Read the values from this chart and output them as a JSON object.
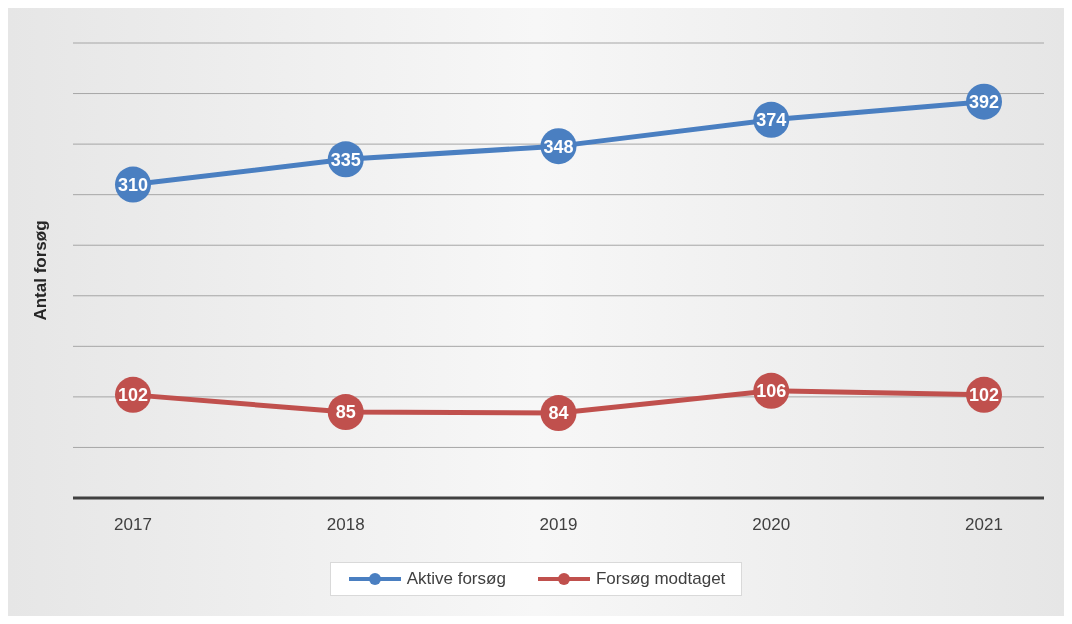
{
  "chart_data": {
    "type": "line",
    "ylabel": "Antal forsøg",
    "categories": [
      "2017",
      "2018",
      "2019",
      "2020",
      "2021"
    ],
    "series": [
      {
        "name": "Aktive forsøg",
        "color": "#4a7fc1",
        "values": [
          310,
          335,
          348,
          374,
          392
        ]
      },
      {
        "name": "Forsøg modtaget",
        "color": "#c0504d",
        "values": [
          102,
          85,
          84,
          106,
          102
        ]
      }
    ],
    "ylim": [
      0,
      450
    ],
    "yticks": [
      {
        "value": 0,
        "label": null
      },
      {
        "value": 50,
        "label": null
      },
      {
        "value": 100,
        "label": null
      },
      {
        "value": 150,
        "label": null
      },
      {
        "value": 200,
        "label": null
      },
      {
        "value": 250,
        "label": null
      },
      {
        "value": 300,
        "label": null
      },
      {
        "value": 350,
        "label": null
      },
      {
        "value": 400,
        "label": null
      },
      {
        "value": 450,
        "label": null
      }
    ],
    "tick_labels": "x",
    "grid": "y",
    "legend": "bottom",
    "marker": "circle",
    "line_style": "solid",
    "data_labels": true
  }
}
